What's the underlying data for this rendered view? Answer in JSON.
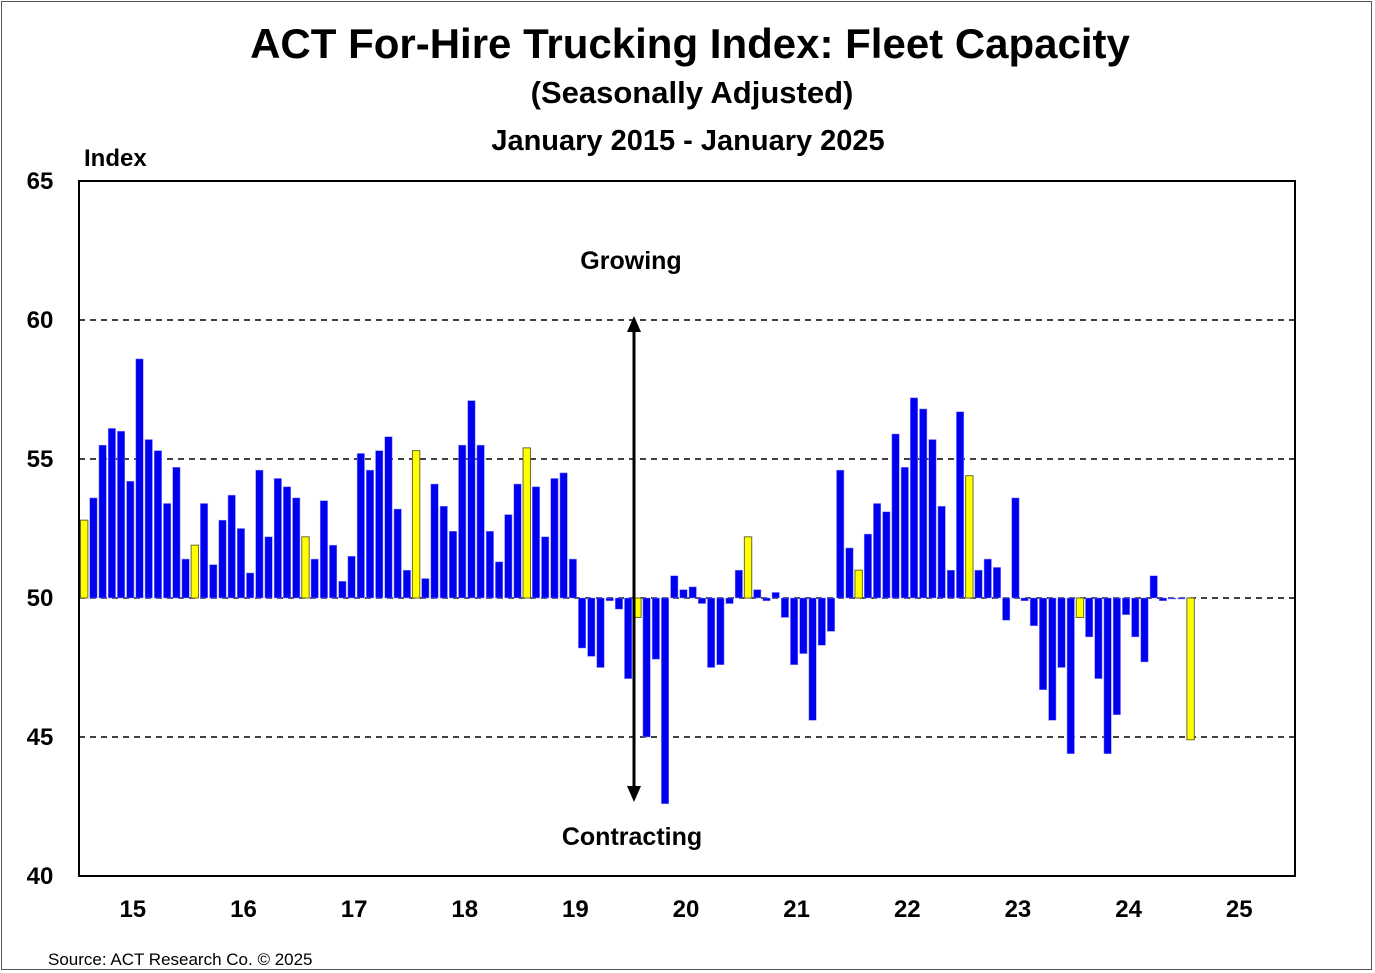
{
  "chart_data": {
    "type": "bar",
    "title": "ACT For-Hire Trucking Index: Fleet Capacity",
    "subtitle": "(Seasonally Adjusted)",
    "date_range": "January  2015 - January  2025",
    "ylabel": "Index",
    "xlabel": "",
    "ylim": [
      40,
      65
    ],
    "yticks": [
      "40",
      "45",
      "50",
      "55",
      "60",
      "65"
    ],
    "xtick_labels": [
      "15",
      "16",
      "17",
      "18",
      "19",
      "20",
      "21",
      "22",
      "23",
      "24",
      "25"
    ],
    "gridlines": [
      45,
      50,
      55,
      60
    ],
    "baseline": 50,
    "annotations": {
      "growing": "Growing",
      "contracting": "Contracting"
    },
    "source": "Source: ACT Research Co. © 2025",
    "colors": {
      "bar": "#0000F0",
      "january_bar": "#FFFF00",
      "bar_outline": "#6b6b2a"
    },
    "start": "2015-01",
    "frequency": "monthly",
    "highlight": "January bars shown in yellow",
    "values": [
      52.8,
      53.6,
      55.5,
      56.1,
      56.0,
      54.2,
      58.6,
      55.7,
      55.3,
      53.4,
      54.7,
      51.4,
      51.9,
      53.4,
      51.2,
      52.8,
      53.7,
      52.5,
      50.9,
      54.6,
      52.2,
      54.3,
      54.0,
      53.6,
      52.2,
      51.4,
      53.5,
      51.9,
      50.6,
      51.5,
      55.2,
      54.6,
      55.3,
      55.8,
      53.2,
      51.0,
      55.3,
      50.7,
      54.1,
      53.3,
      52.4,
      55.5,
      57.1,
      55.5,
      52.4,
      51.3,
      53.0,
      54.1,
      55.4,
      54.0,
      52.2,
      54.3,
      54.5,
      51.4,
      48.2,
      47.9,
      47.5,
      49.9,
      49.6,
      47.1,
      49.3,
      45.0,
      47.8,
      42.6,
      50.8,
      50.3,
      50.4,
      49.8,
      47.5,
      47.6,
      49.8,
      51.0,
      52.2,
      50.3,
      49.9,
      50.2,
      49.3,
      47.6,
      48.0,
      45.6,
      48.3,
      48.8,
      54.6,
      51.8,
      51.0,
      52.3,
      53.4,
      53.1,
      55.9,
      54.7,
      57.2,
      56.8,
      55.7,
      53.3,
      51.0,
      56.7,
      54.4,
      51.0,
      51.4,
      51.1,
      49.2,
      53.6,
      49.9,
      49.0,
      46.7,
      45.6,
      47.5,
      44.4,
      49.3,
      48.6,
      47.1,
      44.4,
      45.8,
      49.4,
      48.6,
      47.7,
      50.8,
      49.9,
      50.0,
      50.0,
      44.9
    ]
  }
}
